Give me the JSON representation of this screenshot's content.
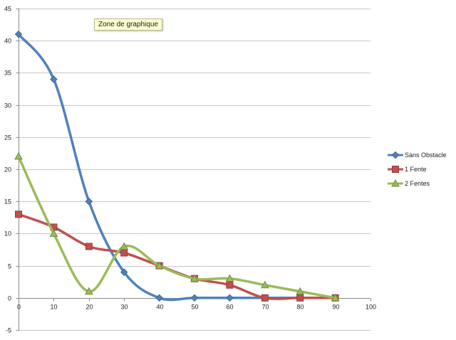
{
  "tooltip": {
    "label": "Zone de graphique"
  },
  "chart_data": {
    "type": "line",
    "title": "",
    "xlabel": "",
    "ylabel": "",
    "xlim": [
      0,
      100
    ],
    "ylim": [
      -5,
      45
    ],
    "xticks": [
      0,
      10,
      20,
      30,
      40,
      50,
      60,
      70,
      80,
      90,
      100
    ],
    "yticks": [
      -5,
      0,
      5,
      10,
      15,
      20,
      25,
      30,
      35,
      40,
      45
    ],
    "grid": true,
    "legend_position": "right",
    "x": [
      0,
      10,
      20,
      30,
      40,
      50,
      60,
      70,
      80,
      90
    ],
    "series": [
      {
        "name": "Sans Obstacle",
        "color": "#4f81bd",
        "marker": "diamond",
        "values": [
          41,
          34,
          15,
          4,
          0,
          0,
          0,
          0,
          0,
          0
        ]
      },
      {
        "name": "1 Fente",
        "color": "#c0504d",
        "marker": "square",
        "values": [
          13,
          11,
          8,
          7,
          5,
          3,
          2,
          0,
          0,
          0
        ]
      },
      {
        "name": "2 Fentes",
        "color": "#9bbb59",
        "marker": "triangle",
        "values": [
          22,
          10,
          1,
          8,
          5,
          3,
          3,
          2,
          1,
          0
        ]
      }
    ]
  }
}
